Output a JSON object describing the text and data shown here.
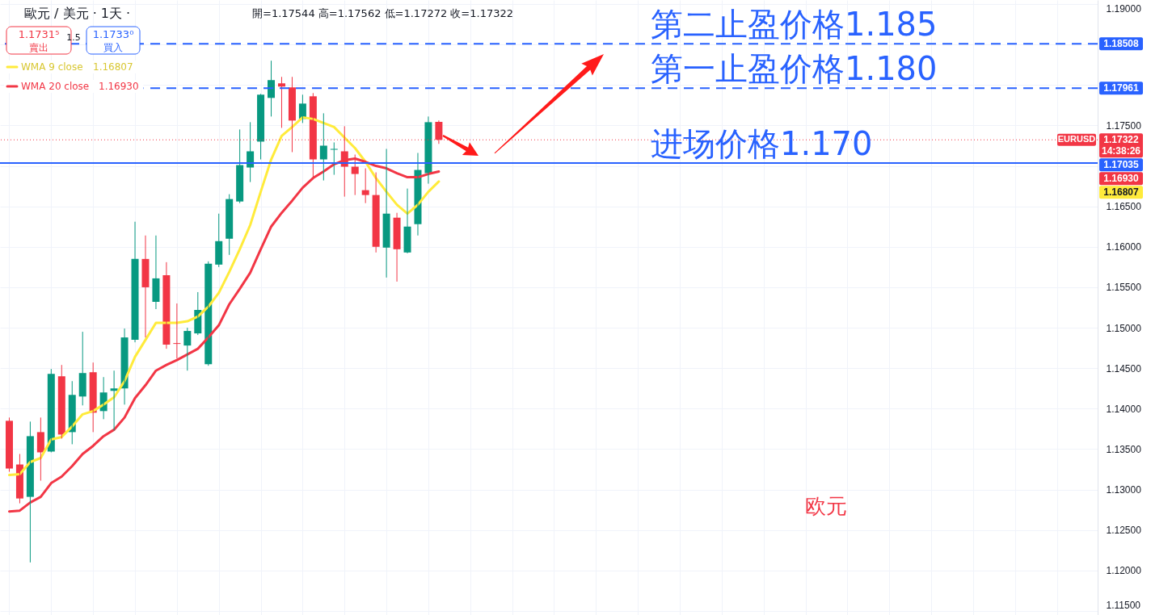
{
  "chart_data": {
    "type": "candlestick",
    "title": "歐元 / 美元 · 1天 ·",
    "categories": [
      null,
      null,
      null,
      null,
      null,
      null,
      null,
      null,
      null,
      null,
      null,
      null,
      null,
      null,
      null,
      null,
      null,
      null,
      null,
      null,
      null,
      null,
      null,
      null,
      null,
      null,
      null,
      null,
      null,
      null,
      null,
      null,
      null,
      null,
      null,
      null,
      null,
      null,
      null,
      null,
      null,
      null,
      null,
      null,
      null,
      null,
      null,
      null,
      null,
      null,
      null,
      null,
      null,
      null,
      null,
      null,
      null,
      null,
      null,
      null,
      null,
      null,
      null,
      null,
      null,
      null,
      null,
      null,
      null,
      null,
      null,
      null,
      null,
      null,
      null,
      null,
      null,
      null,
      null,
      null,
      null,
      null,
      null,
      null,
      null,
      null,
      null,
      null,
      null,
      null,
      null,
      null,
      null,
      null,
      null,
      null,
      null,
      null,
      null,
      null,
      null,
      null,
      null,
      null
    ],
    "ohlc": [
      [
        1.1385,
        1.1389,
        1.1322,
        1.1326
      ],
      [
        1.1331,
        1.1344,
        1.1283,
        1.1289
      ],
      [
        1.1291,
        1.1384,
        1.121,
        1.1366
      ],
      [
        1.1371,
        1.1389,
        1.1311,
        1.1346
      ],
      [
        1.1347,
        1.1449,
        1.1346,
        1.1443
      ],
      [
        1.144,
        1.1454,
        1.1363,
        1.1368
      ],
      [
        1.1371,
        1.1434,
        1.1356,
        1.1417
      ],
      [
        1.1415,
        1.1495,
        1.1404,
        1.1444
      ],
      [
        1.1445,
        1.1457,
        1.1371,
        1.1395
      ],
      [
        1.1397,
        1.1439,
        1.1387,
        1.142
      ],
      [
        1.1422,
        1.1447,
        1.1373,
        1.1425
      ],
      [
        1.1425,
        1.1499,
        1.1405,
        1.1488
      ],
      [
        1.1485,
        1.1631,
        1.1482,
        1.1585
      ],
      [
        1.1585,
        1.1614,
        1.1488,
        1.155
      ],
      [
        1.1532,
        1.1614,
        1.1523,
        1.1561
      ],
      [
        1.1565,
        1.1581,
        1.1474,
        1.1479
      ],
      [
        1.1481,
        1.153,
        1.1462,
        1.148
      ],
      [
        1.1478,
        1.15,
        1.1447,
        1.1496
      ],
      [
        1.1493,
        1.1544,
        1.1491,
        1.1522
      ],
      [
        1.1455,
        1.1582,
        1.1453,
        1.1579
      ],
      [
        1.1578,
        1.1641,
        1.1575,
        1.1607
      ],
      [
        1.161,
        1.1665,
        1.159,
        1.1659
      ],
      [
        1.1656,
        1.1745,
        1.1654,
        1.1701
      ],
      [
        1.1698,
        1.1754,
        1.168,
        1.1718
      ],
      [
        1.173,
        1.1789,
        1.1708,
        1.1788
      ],
      [
        1.1784,
        1.183,
        1.1761,
        1.1806
      ],
      [
        1.1802,
        1.181,
        1.1747,
        1.1798
      ],
      [
        1.1797,
        1.181,
        1.1717,
        1.1756
      ],
      [
        1.1758,
        1.1788,
        1.1753,
        1.1777
      ],
      [
        1.1786,
        1.179,
        1.1686,
        1.1708
      ],
      [
        1.1708,
        1.1765,
        1.1682,
        1.1725
      ],
      [
        1.172,
        1.1729,
        1.1689,
        1.1721
      ],
      [
        1.1718,
        1.1749,
        1.1662,
        1.1699
      ],
      [
        1.1699,
        1.1714,
        1.1664,
        1.169
      ],
      [
        1.167,
        1.1697,
        1.1654,
        1.1664
      ],
      [
        1.1664,
        1.1692,
        1.1593,
        1.16
      ],
      [
        1.1599,
        1.1721,
        1.1562,
        1.1641
      ],
      [
        1.1636,
        1.1642,
        1.1557,
        1.1597
      ],
      [
        1.1593,
        1.1672,
        1.1592,
        1.1625
      ],
      [
        1.1628,
        1.1716,
        1.1614,
        1.1695
      ],
      [
        1.1691,
        1.1761,
        1.1678,
        1.1754
      ],
      [
        1.17544,
        1.17562,
        1.17272,
        1.17322
      ],
      null,
      null,
      null,
      null,
      null,
      null,
      null,
      null,
      null,
      null,
      null,
      null,
      null,
      null,
      null,
      null,
      null,
      null,
      null,
      null,
      null,
      null,
      null,
      null,
      null,
      null,
      null,
      null,
      null,
      null,
      null,
      null,
      null,
      null,
      null,
      null,
      null,
      null,
      null,
      null,
      null,
      null,
      null,
      null,
      null,
      null,
      null,
      null,
      null,
      null,
      null,
      null,
      null,
      null,
      null,
      null,
      null,
      null,
      null,
      null,
      null,
      null
    ],
    "colors": [
      "#f23645",
      "#f23645",
      "#089981",
      "#f23645",
      "#089981",
      "#f23645",
      "#089981",
      "#089981",
      "#f23645",
      "#089981",
      "#089981",
      "#089981",
      "#089981",
      "#f23645",
      "#089981",
      "#f23645",
      "#f23645",
      "#089981",
      "#089981",
      "#089981",
      "#089981",
      "#089981",
      "#089981",
      "#089981",
      "#089981",
      "#089981",
      "#f23645",
      "#f23645",
      "#089981",
      "#f23645",
      "#089981",
      "#089981",
      "#f23645",
      "#f23645",
      "#f23645",
      "#f23645",
      "#089981",
      "#f23645",
      "#089981",
      "#089981",
      "#089981",
      "#f23645",
      null,
      null,
      null,
      null,
      null,
      null,
      null,
      null,
      null,
      null,
      null,
      null,
      null,
      null,
      null,
      null,
      null,
      null,
      null,
      null,
      null,
      null,
      null,
      null,
      null,
      null,
      null,
      null,
      null,
      null,
      null,
      null,
      null,
      null,
      null,
      null,
      null,
      null,
      null,
      null,
      null,
      null,
      null,
      null,
      null,
      null,
      null,
      null,
      null,
      null,
      null,
      null,
      null,
      null,
      null,
      null,
      null,
      null,
      null,
      null,
      null,
      null
    ],
    "series": [
      {
        "name": "WMA 9 close",
        "type": "line",
        "color": "#ffeb3b",
        "values": [
          1.1318,
          1.1319,
          1.1334,
          1.1339,
          1.1362,
          1.1365,
          1.1378,
          1.1393,
          1.1397,
          1.1405,
          1.1414,
          1.1434,
          1.1464,
          1.1485,
          1.1506,
          1.1506,
          1.1506,
          1.1508,
          1.1514,
          1.1526,
          1.1543,
          1.1569,
          1.1597,
          1.1627,
          1.1668,
          1.1708,
          1.1737,
          1.1748,
          1.176,
          1.1758,
          1.1753,
          1.1748,
          1.1735,
          1.1722,
          1.1705,
          1.1685,
          1.1668,
          1.1652,
          1.1641,
          1.1652,
          1.1668,
          1.16807,
          null,
          null,
          null,
          null,
          null,
          null,
          null,
          null,
          null,
          null,
          null,
          null,
          null,
          null,
          null,
          null,
          null,
          null,
          null,
          null,
          null,
          null,
          null,
          null,
          null,
          null,
          null,
          null,
          null,
          null,
          null,
          null,
          null,
          null,
          null,
          null,
          null,
          null,
          null,
          null,
          null,
          null,
          null,
          null,
          null,
          null,
          null,
          null,
          null,
          null,
          null,
          null,
          null,
          null,
          null,
          null,
          null,
          null,
          null,
          null,
          null,
          null
        ]
      },
      {
        "name": "WMA 20 close",
        "type": "line",
        "color": "#f23645",
        "values": [
          1.1273,
          1.1274,
          1.1284,
          1.1291,
          1.1308,
          1.1316,
          1.1329,
          1.1344,
          1.1354,
          1.1366,
          1.1374,
          1.1389,
          1.1413,
          1.1429,
          1.1447,
          1.1454,
          1.146,
          1.1467,
          1.1474,
          1.1488,
          1.1503,
          1.1529,
          1.1548,
          1.1568,
          1.1597,
          1.1625,
          1.1642,
          1.1657,
          1.1673,
          1.1685,
          1.1693,
          1.1702,
          1.1707,
          1.1709,
          1.1705,
          1.17,
          1.1697,
          1.1691,
          1.1686,
          1.1686,
          1.169,
          1.1693,
          null,
          null,
          null,
          null,
          null,
          null,
          null,
          null,
          null,
          null,
          null,
          null,
          null,
          null,
          null,
          null,
          null,
          null,
          null,
          null,
          null,
          null,
          null,
          null,
          null,
          null,
          null,
          null,
          null,
          null,
          null,
          null,
          null,
          null,
          null,
          null,
          null,
          null,
          null,
          null,
          null,
          null,
          null,
          null,
          null,
          null,
          null,
          null,
          null,
          null,
          null,
          null,
          null,
          null,
          null,
          null,
          null,
          null,
          null,
          null,
          null,
          null
        ]
      }
    ],
    "ylim": [
      1.1145,
      1.1905
    ],
    "yticks": [
      {
        "value": 1.115,
        "label": "1.11500"
      },
      {
        "value": 1.12,
        "label": "1.12000"
      },
      {
        "value": 1.125,
        "label": "1.12500"
      },
      {
        "value": 1.13,
        "label": "1.13000"
      },
      {
        "value": 1.135,
        "label": "1.13500"
      },
      {
        "value": 1.14,
        "label": "1.14000"
      },
      {
        "value": 1.145,
        "label": "1.14500"
      },
      {
        "value": 1.15,
        "label": "1.15000"
      },
      {
        "value": 1.155,
        "label": "1.15500"
      },
      {
        "value": 1.16,
        "label": "1.16000"
      },
      {
        "value": 1.165,
        "label": "1.16500"
      },
      {
        "value": 1.17,
        "label": null
      },
      {
        "value": 1.175,
        "label": "1.17500"
      },
      {
        "value": 1.18,
        "label": null
      },
      {
        "value": 1.185,
        "label": null
      },
      {
        "value": 1.19,
        "label": "1.19000"
      }
    ],
    "ref_lines": [
      {
        "axis": "y",
        "value": 1.18508,
        "label": "1.18508",
        "color": "#2962ff",
        "line_style": "dashed"
      },
      {
        "axis": "y",
        "value": 1.17961,
        "label": "1.17961",
        "color": "#2962ff",
        "line_style": "dashed"
      },
      {
        "axis": "y",
        "value": 1.17035,
        "label": "1.17035",
        "color": "#2962ff",
        "line_style": "solid"
      },
      {
        "axis": "y",
        "value": 1.17322,
        "label": "1.17322",
        "color": "#f23645",
        "line_style": "dotted"
      }
    ],
    "annotations": [
      "開=1.17544 高=1.17562 低=1.17272 收=1.17322",
      "1.1731⁵",
      "賣出",
      "1.5",
      "1.1733⁰",
      "買入",
      "1.16807",
      "1.16930",
      {
        "text": "第二止盈价格1.185",
        "y": 1.18508
      },
      {
        "text": "第一止盈价格1.180",
        "y": 1.17961
      },
      {
        "text": "进场价格1.170",
        "y": 1.17035
      },
      {
        "text": "EURUSD",
        "y": 1.17322
      },
      "14:38:26",
      "1.16930",
      "1.16807",
      "欧元"
    ],
    "grid": true,
    "legend": "top left",
    "tick_labels": "y"
  }
}
